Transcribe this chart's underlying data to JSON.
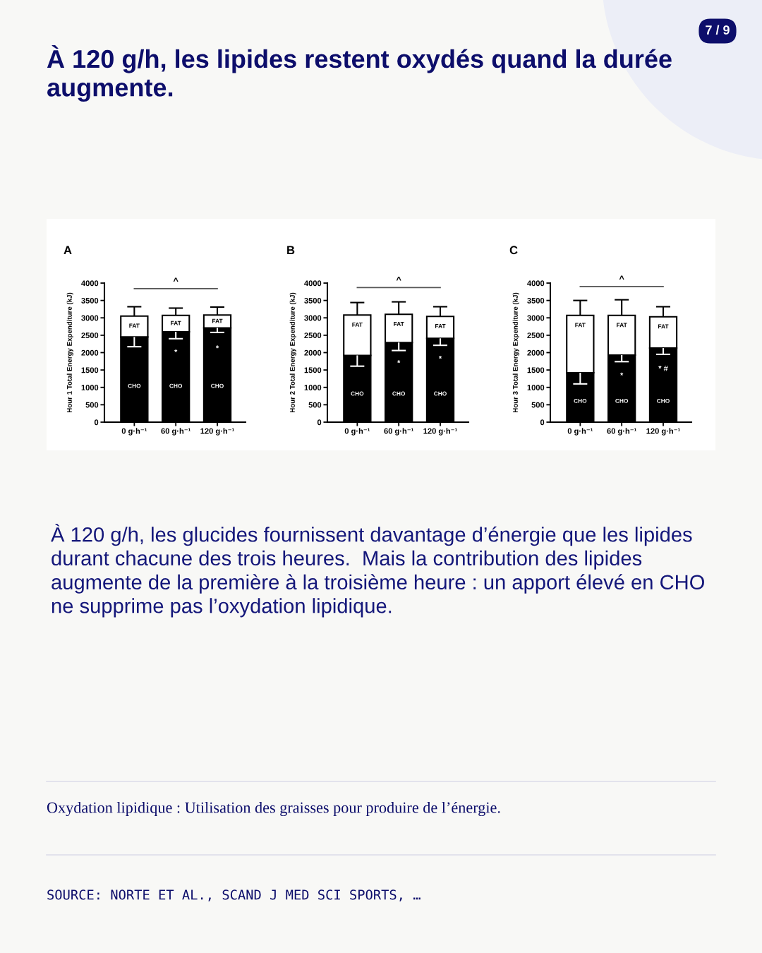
{
  "chart_data": [
    {
      "type": "other",
      "title": "À 120 g/h, les lipides restent oxydés quand la durée augmente.",
      "annotations": [
        "7 / 9",
        "À 120 g/h, les glucides fournissent davantage d’énergie que les lipides durant chacune des trois heures.  Mais la contribution des lipides augmente de la première à la troisième heure : un apport élevé en CHO ne supprime pas l’oxydation lipidique.",
        "Oxydation lipidique : Utilisation des graisses pour produire de l’énergie.",
        "SOURCE: NORTE ET AL., SCAND J MED SCI SPORTS, …"
      ]
    },
    {
      "type": "bar",
      "title": "A",
      "ylabel": "Hour 1 Total Energy Expenditure (kJ)",
      "categories": [
        "0 g·h⁻¹",
        "60 g·h⁻¹",
        "120 g·h⁻¹"
      ],
      "stacked": true,
      "series": [
        {
          "name": "CHO",
          "color": "#000000",
          "values": [
            2450,
            2600,
            2710
          ],
          "errors": [
            [
              2170,
              2450
            ],
            [
              2400,
              2600
            ],
            [
              2580,
              2710
            ]
          ]
        },
        {
          "name": "FAT",
          "color": "#ffffff",
          "values": [
            600,
            470,
            370
          ],
          "errors": [
            [
              3050,
              3320
            ],
            [
              3070,
              3280
            ],
            [
              3080,
              3310
            ]
          ]
        }
      ],
      "ylim": [
        0,
        4000
      ],
      "yticks": [
        0,
        500,
        1000,
        1500,
        2000,
        2500,
        3000,
        3500,
        4000
      ],
      "ref_lines": [
        {
          "axis": "y",
          "value": 3840,
          "label": "^",
          "color": "#555555"
        }
      ],
      "annotations": [
        {
          "text": "*",
          "x": "60 g·h⁻¹",
          "y": 2600
        },
        {
          "text": "*",
          "x": "120 g·h⁻¹",
          "y": 2710
        }
      ]
    },
    {
      "type": "bar",
      "title": "B",
      "ylabel": "Hour 2 Total Energy Expenditure (kJ)",
      "categories": [
        "0 g·h⁻¹",
        "60 g·h⁻¹",
        "120 g·h⁻¹"
      ],
      "stacked": true,
      "series": [
        {
          "name": "CHO",
          "color": "#000000",
          "values": [
            1920,
            2290,
            2410
          ],
          "errors": [
            [
              1610,
              1920
            ],
            [
              2060,
              2290
            ],
            [
              2210,
              2410
            ]
          ]
        },
        {
          "name": "FAT",
          "color": "#ffffff",
          "values": [
            1160,
            810,
            630
          ],
          "errors": [
            [
              3080,
              3440
            ],
            [
              3100,
              3460
            ],
            [
              3040,
              3320
            ]
          ]
        }
      ],
      "ylim": [
        0,
        4000
      ],
      "yticks": [
        0,
        500,
        1000,
        1500,
        2000,
        2500,
        3000,
        3500,
        4000
      ],
      "ref_lines": [
        {
          "axis": "y",
          "value": 3870,
          "label": "^",
          "color": "#555555"
        }
      ],
      "annotations": [
        {
          "text": "*",
          "x": "60 g·h⁻¹",
          "y": 2290
        },
        {
          "text": "*",
          "x": "120 g·h⁻¹",
          "y": 2410
        }
      ]
    },
    {
      "type": "bar",
      "title": "C",
      "ylabel": "Hour 3 Total Energy Expenditure (kJ)",
      "categories": [
        "0 g·h⁻¹",
        "60 g·h⁻¹",
        "120 g·h⁻¹"
      ],
      "stacked": true,
      "series": [
        {
          "name": "CHO",
          "color": "#000000",
          "values": [
            1420,
            1930,
            2130
          ],
          "errors": [
            [
              1100,
              1420
            ],
            [
              1740,
              1930
            ],
            [
              1950,
              2130
            ]
          ]
        },
        {
          "name": "FAT",
          "color": "#ffffff",
          "values": [
            1650,
            1140,
            900
          ],
          "errors": [
            [
              3070,
              3500
            ],
            [
              3070,
              3520
            ],
            [
              3030,
              3320
            ]
          ]
        }
      ],
      "ylim": [
        0,
        4000
      ],
      "yticks": [
        0,
        500,
        1000,
        1500,
        2000,
        2500,
        3000,
        3500,
        4000
      ],
      "ref_lines": [
        {
          "axis": "y",
          "value": 3900,
          "label": "^",
          "color": "#555555"
        }
      ],
      "annotations": [
        {
          "text": "*",
          "x": "60 g·h⁻¹",
          "y": 1930
        },
        {
          "text": "* #",
          "x": "120 g·h⁻¹",
          "y": 2130
        }
      ]
    }
  ]
}
